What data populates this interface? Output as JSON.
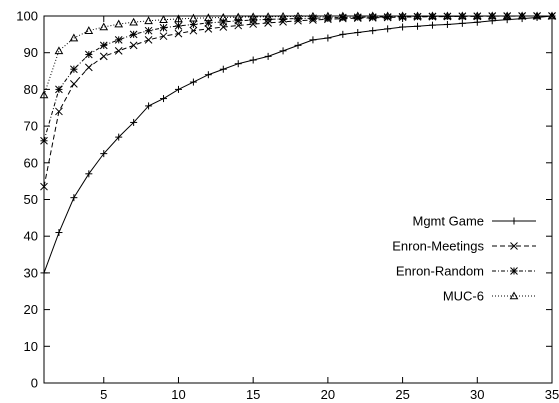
{
  "chart_data": {
    "type": "line",
    "title": "",
    "xlabel": "",
    "ylabel": "",
    "xlim": [
      1,
      35
    ],
    "ylim": [
      0,
      100
    ],
    "xticks": [
      5,
      10,
      15,
      20,
      25,
      30,
      35
    ],
    "yticks": [
      0,
      10,
      20,
      30,
      40,
      50,
      60,
      70,
      80,
      90,
      100
    ],
    "grid": false,
    "legend": "center-right",
    "series": [
      {
        "name": "Mgmt Game",
        "marker": "plus",
        "dash": "solid",
        "x": [
          1,
          2,
          3,
          4,
          5,
          6,
          7,
          8,
          9,
          10,
          11,
          12,
          13,
          14,
          15,
          16,
          17,
          18,
          19,
          20,
          21,
          22,
          23,
          24,
          25,
          26,
          27,
          28,
          29,
          30,
          31,
          32,
          33,
          34,
          35
        ],
        "values": [
          30,
          41,
          50.5,
          57,
          62.5,
          67,
          71,
          75.5,
          77.5,
          80,
          82,
          84,
          85.5,
          87,
          88,
          89,
          90.5,
          92,
          93.5,
          94,
          95,
          95.5,
          96,
          96.5,
          97,
          97.2,
          97.5,
          97.7,
          98,
          98.3,
          98.7,
          99,
          99.3,
          99.6,
          100
        ]
      },
      {
        "name": "Enron-Meetings",
        "marker": "cross",
        "dash": "dashed",
        "x": [
          1,
          2,
          3,
          4,
          5,
          6,
          7,
          8,
          9,
          10,
          11,
          12,
          13,
          14,
          15,
          16,
          17,
          18,
          19,
          20,
          21,
          22,
          23,
          24,
          25,
          26,
          27,
          28,
          29,
          30,
          31,
          32,
          33,
          34,
          35
        ],
        "values": [
          53.5,
          74,
          81.5,
          86,
          89,
          90.5,
          92,
          93.5,
          94.5,
          95.2,
          96,
          96.5,
          97,
          97.4,
          97.8,
          98.1,
          98.4,
          98.7,
          98.9,
          99.1,
          99.3,
          99.4,
          99.5,
          99.6,
          99.7,
          99.75,
          99.8,
          99.85,
          99.9,
          99.9,
          99.95,
          99.95,
          100,
          100,
          100
        ]
      },
      {
        "name": "Enron-Random",
        "marker": "star",
        "dash": "dashdot",
        "x": [
          1,
          2,
          3,
          4,
          5,
          6,
          7,
          8,
          9,
          10,
          11,
          12,
          13,
          14,
          15,
          16,
          17,
          18,
          19,
          20,
          21,
          22,
          23,
          24,
          25,
          26,
          27,
          28,
          29,
          30,
          31,
          32,
          33,
          34,
          35
        ],
        "values": [
          66,
          80,
          85.5,
          89.5,
          92,
          93.5,
          95,
          96,
          96.8,
          97.3,
          97.7,
          98.1,
          98.4,
          98.7,
          98.9,
          99.1,
          99.2,
          99.3,
          99.4,
          99.5,
          99.6,
          99.65,
          99.7,
          99.75,
          99.8,
          99.85,
          99.9,
          99.9,
          99.95,
          99.95,
          100,
          100,
          100,
          100,
          100
        ]
      },
      {
        "name": "MUC-6",
        "marker": "triangle",
        "dash": "dotted",
        "x": [
          1,
          2,
          3,
          4,
          5,
          6,
          7,
          8,
          9,
          10,
          11,
          12,
          13,
          14,
          15,
          16,
          17,
          18,
          19,
          20,
          21,
          22,
          23,
          24,
          25,
          26,
          27,
          28,
          29,
          30,
          31,
          32,
          33,
          34,
          35
        ],
        "values": [
          78.5,
          90.5,
          94,
          96,
          97,
          97.8,
          98.3,
          98.7,
          99,
          99.2,
          99.4,
          99.5,
          99.6,
          99.7,
          99.75,
          99.8,
          99.85,
          99.9,
          99.9,
          99.95,
          99.95,
          100,
          100,
          100,
          100,
          100,
          100,
          100,
          100,
          100,
          100,
          100,
          100,
          100,
          100
        ]
      }
    ]
  }
}
